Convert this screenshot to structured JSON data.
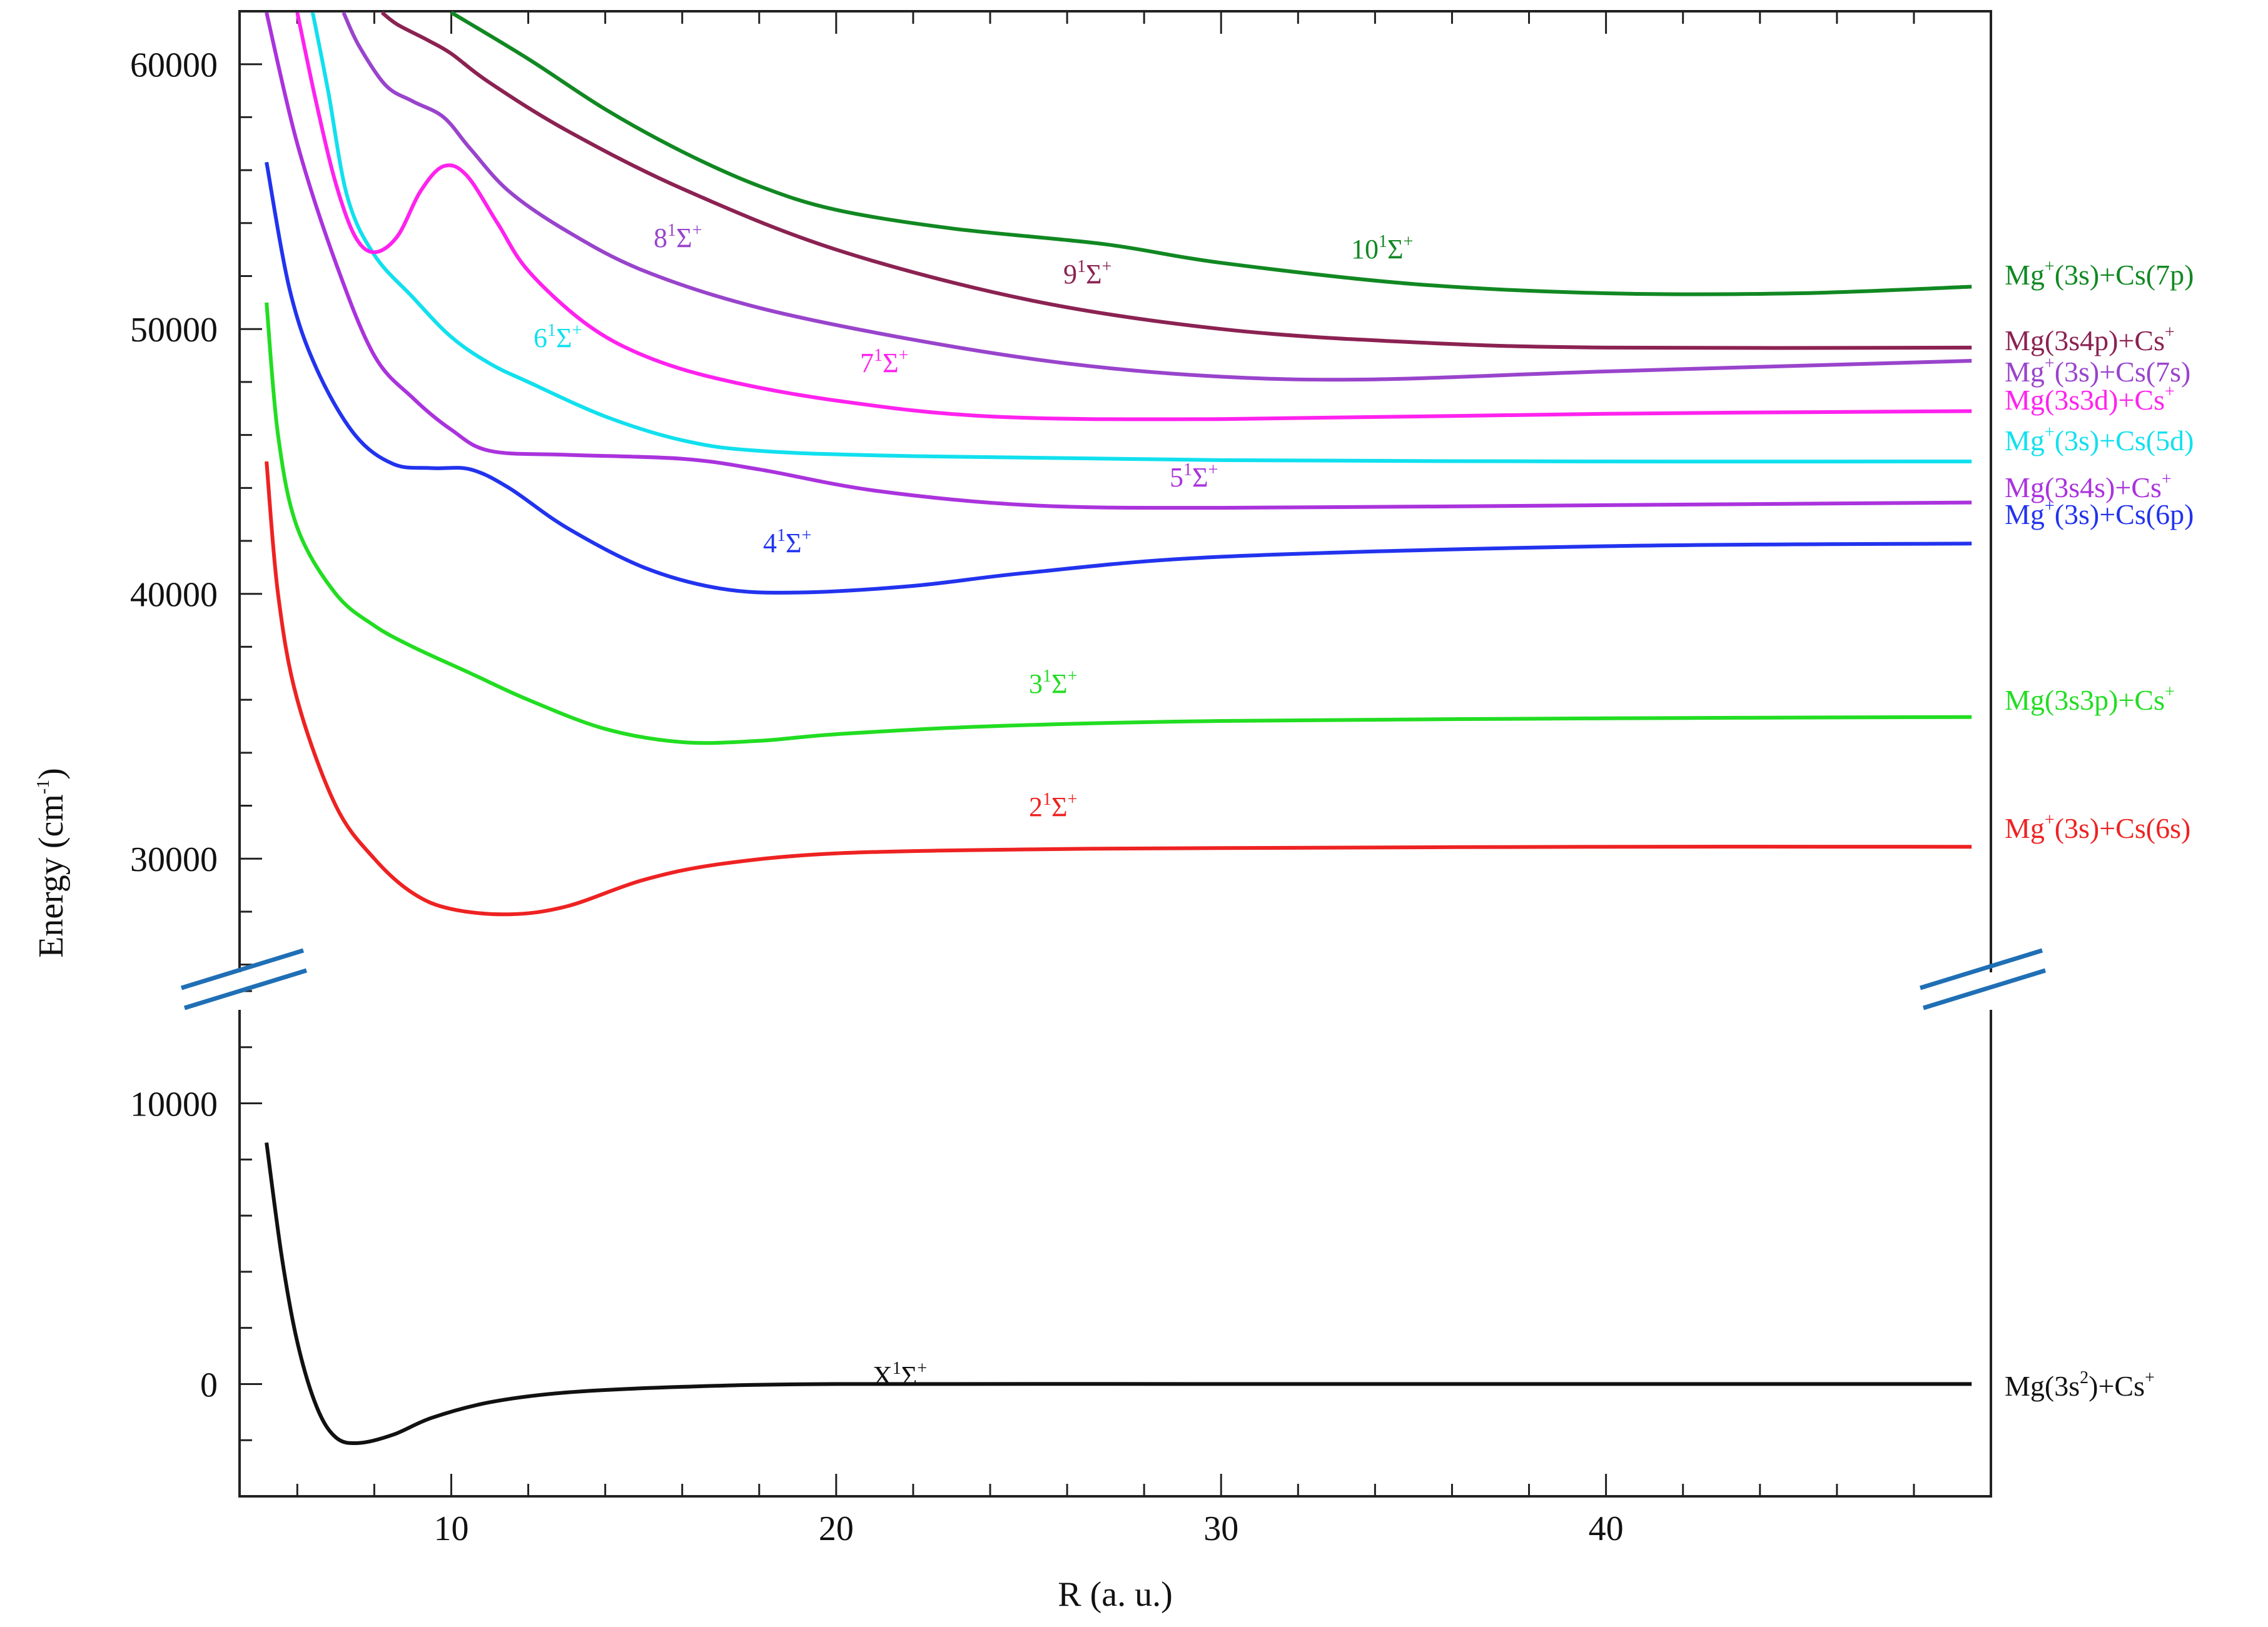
{
  "chart_data": {
    "type": "line",
    "xlabel": "R (a. u.)",
    "ylabel": "Energy (cm",
    "ylabel_sup": "-1",
    "ylabel_close": ")",
    "xlim": [
      4.5,
      50
    ],
    "x_ticks": [
      10,
      20,
      30,
      40
    ],
    "x_minor_step": 2,
    "y_broken_axis": true,
    "y_ranges": {
      "lower": [
        -4000,
        14000
      ],
      "upper": [
        25000,
        62000
      ]
    },
    "y_ticks": [
      0,
      10000,
      30000,
      40000,
      50000,
      60000
    ],
    "y_minor_step": 2000,
    "grid": false,
    "break_color": "#1f6fb5",
    "series": [
      {
        "name": "X",
        "label": {
          "pre": "X",
          "n": "",
          "sup": "1",
          "mid": "Σ",
          "sup2": "+"
        },
        "asymptote": {
          "parts": [
            [
              "Mg(3s",
              ""
            ],
            [
              "2",
              "sup"
            ],
            [
              ")+Cs",
              ""
            ],
            [
              "+",
              "sup"
            ]
          ]
        },
        "color": "#111111",
        "points": [
          [
            5.2,
            8600
          ],
          [
            5.6,
            4500
          ],
          [
            6.0,
            1500
          ],
          [
            6.5,
            -800
          ],
          [
            7.0,
            -1900
          ],
          [
            7.6,
            -2100
          ],
          [
            8.5,
            -1800
          ],
          [
            9.5,
            -1200
          ],
          [
            11,
            -650
          ],
          [
            13,
            -300
          ],
          [
            16,
            -100
          ],
          [
            20,
            0
          ],
          [
            30,
            0
          ],
          [
            40,
            0
          ],
          [
            49.5,
            0
          ]
        ]
      },
      {
        "name": "2",
        "label": {
          "pre": "",
          "n": "2",
          "sup": "1",
          "mid": "Σ",
          "sup2": "+"
        },
        "asymptote": {
          "parts": [
            [
              "Mg",
              ""
            ],
            [
              "+",
              "sup"
            ],
            [
              "(3s)+Cs(6s)",
              ""
            ]
          ]
        },
        "color": "#ee2222",
        "points": [
          [
            5.2,
            45000
          ],
          [
            5.5,
            40000
          ],
          [
            6.0,
            36000
          ],
          [
            7.0,
            32000
          ],
          [
            8.0,
            30000
          ],
          [
            9.0,
            28700
          ],
          [
            10,
            28100
          ],
          [
            11.5,
            27900
          ],
          [
            13,
            28200
          ],
          [
            15,
            29200
          ],
          [
            17,
            29800
          ],
          [
            20,
            30200
          ],
          [
            25,
            30350
          ],
          [
            30,
            30400
          ],
          [
            40,
            30450
          ],
          [
            49.5,
            30450
          ]
        ]
      },
      {
        "name": "3",
        "label": {
          "pre": "",
          "n": "3",
          "sup": "1",
          "mid": "Σ",
          "sup2": "+"
        },
        "asymptote": {
          "parts": [
            [
              "Mg(3s3p)+Cs",
              ""
            ],
            [
              "+",
              "sup"
            ]
          ]
        },
        "color": "#22dd22",
        "points": [
          [
            5.2,
            51000
          ],
          [
            5.5,
            46000
          ],
          [
            6.0,
            42500
          ],
          [
            7.0,
            40000
          ],
          [
            8.0,
            38800
          ],
          [
            9.0,
            38000
          ],
          [
            10.5,
            37000
          ],
          [
            12,
            36000
          ],
          [
            14,
            34900
          ],
          [
            16,
            34400
          ],
          [
            18,
            34450
          ],
          [
            20,
            34700
          ],
          [
            24,
            35000
          ],
          [
            30,
            35200
          ],
          [
            40,
            35300
          ],
          [
            49.5,
            35350
          ]
        ]
      },
      {
        "name": "4",
        "label": {
          "pre": "",
          "n": "4",
          "sup": "1",
          "mid": "Σ",
          "sup2": "+"
        },
        "asymptote": {
          "parts": [
            [
              "Mg",
              ""
            ],
            [
              "+",
              "sup"
            ],
            [
              "(3s)+Cs(6p)",
              ""
            ]
          ]
        },
        "color": "#2233ee",
        "points": [
          [
            5.2,
            56300
          ],
          [
            5.8,
            51500
          ],
          [
            6.5,
            48500
          ],
          [
            7.5,
            46000
          ],
          [
            8.5,
            44900
          ],
          [
            9.5,
            44750
          ],
          [
            10.5,
            44700
          ],
          [
            11.5,
            44000
          ],
          [
            13,
            42500
          ],
          [
            15,
            41000
          ],
          [
            17,
            40200
          ],
          [
            19,
            40050
          ],
          [
            22,
            40300
          ],
          [
            25,
            40800
          ],
          [
            30,
            41400
          ],
          [
            40,
            41800
          ],
          [
            49.5,
            41900
          ]
        ]
      },
      {
        "name": "5",
        "label": {
          "pre": "",
          "n": "5",
          "sup": "1",
          "mid": "Σ",
          "sup2": "+"
        },
        "asymptote": {
          "parts": [
            [
              "Mg(3s4s)+Cs",
              ""
            ],
            [
              "+",
              "sup"
            ]
          ]
        },
        "color": "#aa33dd",
        "points": [
          [
            5.2,
            62500
          ],
          [
            6.0,
            57000
          ],
          [
            7.0,
            52500
          ],
          [
            8.0,
            49000
          ],
          [
            9.0,
            47400
          ],
          [
            10,
            46200
          ],
          [
            11,
            45400
          ],
          [
            13,
            45250
          ],
          [
            16,
            45100
          ],
          [
            18,
            44700
          ],
          [
            21,
            43900
          ],
          [
            25,
            43350
          ],
          [
            30,
            43250
          ],
          [
            40,
            43350
          ],
          [
            49.5,
            43450
          ]
        ]
      },
      {
        "name": "6",
        "label": {
          "pre": "",
          "n": "6",
          "sup": "1",
          "mid": "Σ",
          "sup2": "+"
        },
        "asymptote": {
          "parts": [
            [
              "Mg",
              ""
            ],
            [
              "+",
              "sup"
            ],
            [
              "(3s)+Cs(5d)",
              ""
            ]
          ]
        },
        "color": "#11e0ee",
        "points": [
          [
            6.4,
            62500
          ],
          [
            6.8,
            59000
          ],
          [
            7.3,
            55000
          ],
          [
            8.0,
            52800
          ],
          [
            9.0,
            51200
          ],
          [
            10,
            49700
          ],
          [
            11,
            48700
          ],
          [
            12,
            48000
          ],
          [
            14,
            46700
          ],
          [
            16,
            45800
          ],
          [
            18,
            45400
          ],
          [
            22,
            45200
          ],
          [
            30,
            45050
          ],
          [
            40,
            45000
          ],
          [
            49.5,
            45000
          ]
        ]
      },
      {
        "name": "7",
        "label": {
          "pre": "",
          "n": "7",
          "sup": "1",
          "mid": "Σ",
          "sup2": "+"
        },
        "asymptote": {
          "parts": [
            [
              "Mg(3s3d)+Cs",
              ""
            ],
            [
              "+",
              "sup"
            ]
          ]
        },
        "color": "#ff22ee",
        "points": [
          [
            6.0,
            62500
          ],
          [
            6.5,
            58500
          ],
          [
            7.0,
            55500
          ],
          [
            7.5,
            53500
          ],
          [
            8.0,
            52900
          ],
          [
            8.6,
            53500
          ],
          [
            9.2,
            55200
          ],
          [
            9.8,
            56150
          ],
          [
            10.4,
            55800
          ],
          [
            11.2,
            54000
          ],
          [
            12,
            52200
          ],
          [
            13.5,
            50200
          ],
          [
            15,
            49000
          ],
          [
            17,
            48100
          ],
          [
            20,
            47300
          ],
          [
            24,
            46700
          ],
          [
            30,
            46600
          ],
          [
            40,
            46800
          ],
          [
            49.5,
            46900
          ]
        ]
      },
      {
        "name": "8",
        "label": {
          "pre": "",
          "n": "8",
          "sup": "1",
          "mid": "Σ",
          "sup2": "+"
        },
        "asymptote": {
          "parts": [
            [
              "Mg",
              ""
            ],
            [
              "+",
              "sup"
            ],
            [
              "(3s)+Cs(7s)",
              ""
            ]
          ]
        },
        "color": "#9944cc",
        "points": [
          [
            7.2,
            62500
          ],
          [
            7.6,
            60700
          ],
          [
            8.3,
            59200
          ],
          [
            9.0,
            58600
          ],
          [
            9.8,
            58000
          ],
          [
            10.5,
            56800
          ],
          [
            11.5,
            55200
          ],
          [
            13,
            53700
          ],
          [
            15,
            52200
          ],
          [
            18,
            50800
          ],
          [
            22,
            49600
          ],
          [
            26,
            48700
          ],
          [
            30,
            48200
          ],
          [
            34,
            48100
          ],
          [
            40,
            48400
          ],
          [
            49.5,
            48800
          ]
        ]
      },
      {
        "name": "9",
        "label": {
          "pre": "",
          "n": "9",
          "sup": "1",
          "mid": "Σ",
          "sup2": "+"
        },
        "asymptote": {
          "parts": [
            [
              "Mg(3s4p)+Cs",
              ""
            ],
            [
              "+",
              "sup"
            ]
          ]
        },
        "color": "#8b2252",
        "points": [
          [
            8.2,
            62500
          ],
          [
            8.6,
            61500
          ],
          [
            9.4,
            60900
          ],
          [
            10,
            60400
          ],
          [
            11,
            59300
          ],
          [
            13,
            57500
          ],
          [
            16,
            55300
          ],
          [
            20,
            53000
          ],
          [
            25,
            51100
          ],
          [
            30,
            50000
          ],
          [
            35,
            49500
          ],
          [
            40,
            49300
          ],
          [
            49.5,
            49300
          ]
        ]
      },
      {
        "name": "10",
        "label": {
          "pre": "",
          "n": "10",
          "sup": "1",
          "mid": "Σ",
          "sup2": "+"
        },
        "asymptote": {
          "parts": [
            [
              "Mg",
              ""
            ],
            [
              "+",
              "sup"
            ],
            [
              "(3s)+Cs(7p)",
              ""
            ]
          ]
        },
        "color": "#118822",
        "points": [
          [
            10,
            62400
          ],
          [
            12,
            60200
          ],
          [
            14,
            58300
          ],
          [
            16,
            56700
          ],
          [
            18,
            55400
          ],
          [
            20,
            54500
          ],
          [
            23,
            53800
          ],
          [
            27,
            53200
          ],
          [
            30,
            52500
          ],
          [
            35,
            51700
          ],
          [
            40,
            51350
          ],
          [
            45,
            51350
          ],
          [
            49.5,
            51600
          ]
        ]
      }
    ]
  }
}
